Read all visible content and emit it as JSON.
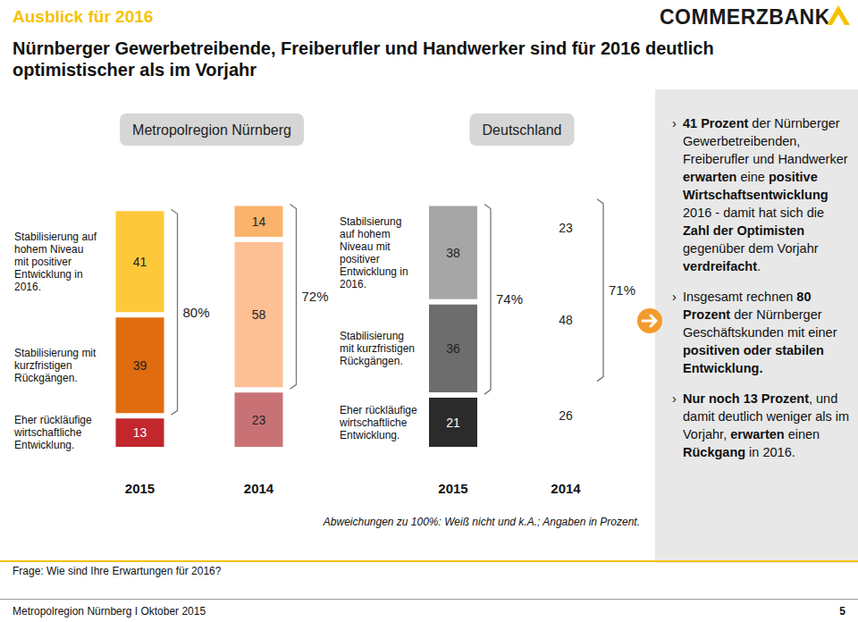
{
  "header": {
    "kicker": "Ausblick für 2016",
    "title": "Nürnberger Gewerbetreibende, Freiberufler und Handwerker sind für 2016 deutlich optimistischer als im Vorjahr",
    "logo": "COMMERZBANK"
  },
  "chart_data": [
    {
      "type": "bar",
      "title": "Metropolregion Nürnberg",
      "categories": [
        "2015",
        "2014"
      ],
      "stacked": true,
      "data_labels": true,
      "tick_labels": "x",
      "ylim": [
        0,
        100
      ],
      "series": [
        {
          "name": "Eher rückläufige wirtschaftliche Entwicklung.",
          "colors": [
            "#c1272d",
            "#c97276"
          ],
          "values": [
            13,
            23
          ]
        },
        {
          "name": "Stabilisierung mit kurzfristigen Rückgängen.",
          "colors": [
            "#e06c10",
            "#fdbf94"
          ],
          "values": [
            39,
            58
          ]
        },
        {
          "name": "Stabilisierung auf hohem Niveau mit positiver Entwicklung in 2016.",
          "colors": [
            "#fdc93a",
            "#fbb36b"
          ],
          "values": [
            41,
            14
          ]
        }
      ],
      "brackets": [
        {
          "value": 80,
          "label": "80%"
        },
        {
          "value": 72,
          "label": "72%"
        }
      ]
    },
    {
      "type": "bar",
      "title": "Deutschland",
      "categories": [
        "2015",
        "2014"
      ],
      "stacked": true,
      "data_labels": true,
      "tick_labels": "x",
      "ylim": [
        0,
        100
      ],
      "series": [
        {
          "name": "Eher rückläufige wirtschaftliche Entwicklung.",
          "colors": [
            "#2b2b2b",
            "#ffffff"
          ],
          "values": [
            21,
            26
          ]
        },
        {
          "name": "Stabilisierung mit kurzfristigen Rückgängen.",
          "colors": [
            "#6d6d6d",
            "#ffffff"
          ],
          "values": [
            36,
            48
          ]
        },
        {
          "name": "Stabilsierung auf hohem Niveau mit positiver Entwicklung in 2016.",
          "colors": [
            "#a6a6a6",
            "#ffffff"
          ],
          "values": [
            38,
            23
          ]
        }
      ],
      "brackets": [
        {
          "value": 74,
          "label": "74%"
        },
        {
          "value": 71,
          "label": "71%"
        }
      ]
    }
  ],
  "note": "Abweichungen zu 100%: Weiß nicht und k.A.; Angaben in Prozent.",
  "sidebar": {
    "bullets": [
      [
        {
          "text": "41 Prozent",
          "bold": true
        },
        {
          "text": " der Nürnberger Gewerbetreibenden, Freiberufler und Handwerker ",
          "bold": false
        },
        {
          "text": "erwarten",
          "bold": true
        },
        {
          "text": " eine ",
          "bold": false
        },
        {
          "text": "positive Wirtschaftsentwicklung",
          "bold": true
        },
        {
          "text": " 2016 - damit hat sich die ",
          "bold": false
        },
        {
          "text": "Zahl der Optimisten",
          "bold": true
        },
        {
          "text": " gegenüber dem Vorjahr ",
          "bold": false
        },
        {
          "text": "verdreifacht",
          "bold": true
        },
        {
          "text": ".",
          "bold": false
        }
      ],
      [
        {
          "text": "Insgesamt rechnen ",
          "bold": false
        },
        {
          "text": "80 Prozent",
          "bold": true
        },
        {
          "text": " der Nürnberger Geschäftskunden mit einer ",
          "bold": false
        },
        {
          "text": "positiven oder stabilen Entwicklung.",
          "bold": true
        }
      ],
      [
        {
          "text": "Nur noch 13 Prozent",
          "bold": true
        },
        {
          "text": ", und damit deutlich weniger als im Vorjahr, ",
          "bold": false
        },
        {
          "text": "erwarten",
          "bold": true
        },
        {
          "text": " einen ",
          "bold": false
        },
        {
          "text": "Rückgang",
          "bold": true
        },
        {
          "text": " in 2016.",
          "bold": false
        }
      ]
    ]
  },
  "footer": {
    "question": "Frage: Wie sind Ihre Erwartungen für 2016?",
    "source": "Metropolregion Nürnberg I Oktober 2015",
    "page": "5"
  }
}
